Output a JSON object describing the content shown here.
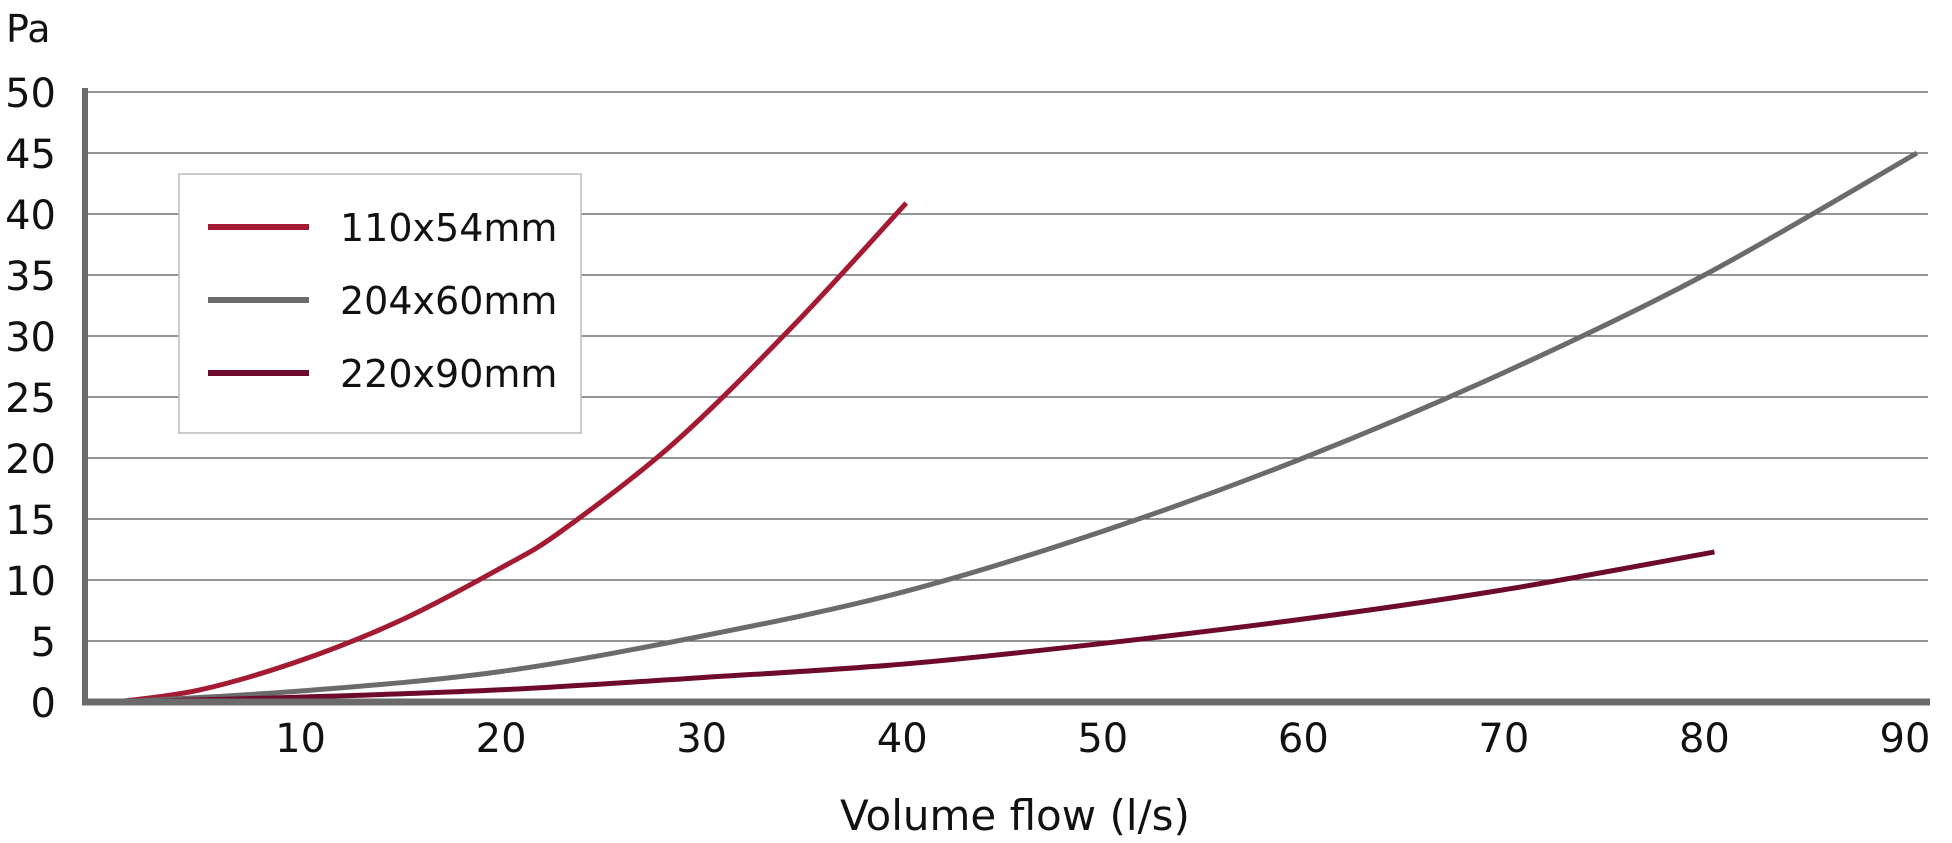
{
  "chart_data": {
    "type": "line",
    "title": "",
    "xlabel": "Volume flow (l/s)",
    "ylabel": "Pa",
    "xlim": [
      0,
      90
    ],
    "ylim": [
      0,
      50
    ],
    "x_ticks": [
      "10",
      "20",
      "30",
      "40",
      "50",
      "60",
      "70",
      "80",
      "90"
    ],
    "y_ticks": [
      "0",
      "5",
      "10",
      "15",
      "20",
      "25",
      "30",
      "35",
      "40",
      "45",
      "50"
    ],
    "grid": "horizontal",
    "legend_position": "top-left",
    "series": [
      {
        "name": "110x54mm",
        "color": "#a31a32",
        "x": [
          0.8,
          5,
          10,
          15,
          20,
          23,
          28.6,
          34.6,
          40.2
        ],
        "y": [
          0,
          1.0,
          3.4,
          6.7,
          11.0,
          14,
          21.2,
          30.9,
          40.9
        ]
      },
      {
        "name": "204x60mm",
        "color": "#6b6b6b",
        "x": [
          0.8,
          10,
          20,
          30,
          40,
          50,
          60,
          70,
          80,
          90.6
        ],
        "y": [
          0,
          0.9,
          2.5,
          5.4,
          9.0,
          14.0,
          20.0,
          27.0,
          35.0,
          45.0
        ]
      },
      {
        "name": "220x90mm",
        "color": "#6e0a2e",
        "x": [
          0.8,
          10,
          20,
          30,
          40,
          50,
          60,
          70,
          80.5
        ],
        "y": [
          0,
          0.4,
          1.0,
          2.0,
          3.1,
          4.8,
          6.8,
          9.2,
          12.3
        ]
      }
    ]
  }
}
